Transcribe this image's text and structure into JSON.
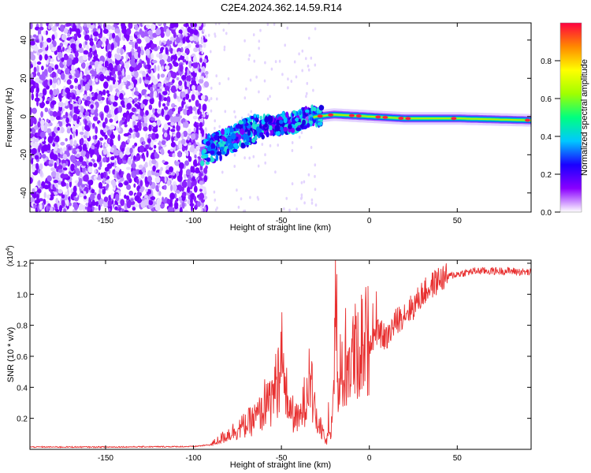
{
  "page": {
    "title": "C2E4.2024.362.14.59.R14"
  },
  "chart_data": [
    {
      "type": "heatmap",
      "title": "C2E4.2024.362.14.59.R14",
      "xlabel": "Height of straight line (km)",
      "ylabel": "Frequency (Hz)",
      "xlim": [
        -193,
        92
      ],
      "ylim": [
        -50,
        49
      ],
      "xticks": [
        -150,
        -100,
        -50,
        0,
        50
      ],
      "xtick_labels": [
        "-150",
        "-100",
        "-50",
        "0",
        "50"
      ],
      "yticks": [
        -40,
        -20,
        0,
        20,
        40
      ],
      "ytick_labels": [
        "-40",
        "-20",
        "0",
        "20",
        "40"
      ],
      "colorbar": {
        "label": "Normalized spectral amplitude",
        "range": [
          0,
          1
        ],
        "ticks": [
          0.0,
          0.2,
          0.4,
          0.6,
          0.8
        ],
        "tick_labels": [
          "0.0",
          "0.2",
          "0.4",
          "0.6",
          "0.8"
        ],
        "colors": [
          "#ffffff",
          "#8a00ff",
          "#1a00ff",
          "#00c8ff",
          "#00ff80",
          "#a0ff00",
          "#ffff00",
          "#ff8800",
          "#ff0040"
        ]
      },
      "ridge": {
        "description_points_x": [
          -96,
          -90,
          -80,
          -70,
          -60,
          -50,
          -40,
          -30,
          -20,
          0,
          20,
          50,
          92
        ],
        "frequency_y": [
          -18,
          -17,
          -13,
          -8,
          -5,
          -4,
          -2,
          0,
          1,
          0,
          -1,
          -1,
          -2
        ]
      }
    },
    {
      "type": "line",
      "xlabel": "Height of straight line (km)",
      "ylabel": "SNR (10 * v/v)",
      "y_multiplier_label": "(x10",
      "y_multiplier_exp": "4",
      "xlim": [
        -193,
        92
      ],
      "ylim": [
        0,
        1.22
      ],
      "xticks": [
        -150,
        -100,
        -50,
        0,
        50
      ],
      "xtick_labels": [
        "-150",
        "-100",
        "-50",
        "0",
        "50"
      ],
      "yticks": [
        0.2,
        0.4,
        0.6,
        0.8,
        1.0,
        1.2
      ],
      "ytick_labels": [
        "0.2",
        "0.4",
        "0.6",
        "0.8",
        "1.0",
        "1.2"
      ],
      "series": [
        {
          "name": "SNR",
          "color": "#e83030",
          "x": [
            -193,
            -150,
            -100,
            -90,
            -80,
            -75,
            -70,
            -65,
            -60,
            -56,
            -52,
            -50,
            -48,
            -45,
            -40,
            -36,
            -34,
            -32,
            -30,
            -27,
            -25,
            -22,
            -20,
            -19,
            -18,
            -15,
            -12,
            -10,
            -5,
            0,
            5,
            10,
            15,
            20,
            25,
            30,
            35,
            40,
            50,
            60,
            70,
            80,
            92
          ],
          "values": [
            0.015,
            0.015,
            0.018,
            0.03,
            0.1,
            0.13,
            0.16,
            0.2,
            0.25,
            0.32,
            0.45,
            0.62,
            0.4,
            0.25,
            0.18,
            0.35,
            0.55,
            0.3,
            0.18,
            0.12,
            0.05,
            0.1,
            0.65,
            1.22,
            0.35,
            0.48,
            0.55,
            0.58,
            0.68,
            0.7,
            0.75,
            0.72,
            0.82,
            0.88,
            0.92,
            1.0,
            1.05,
            1.1,
            1.13,
            1.15,
            1.15,
            1.15,
            1.14
          ]
        }
      ]
    }
  ]
}
